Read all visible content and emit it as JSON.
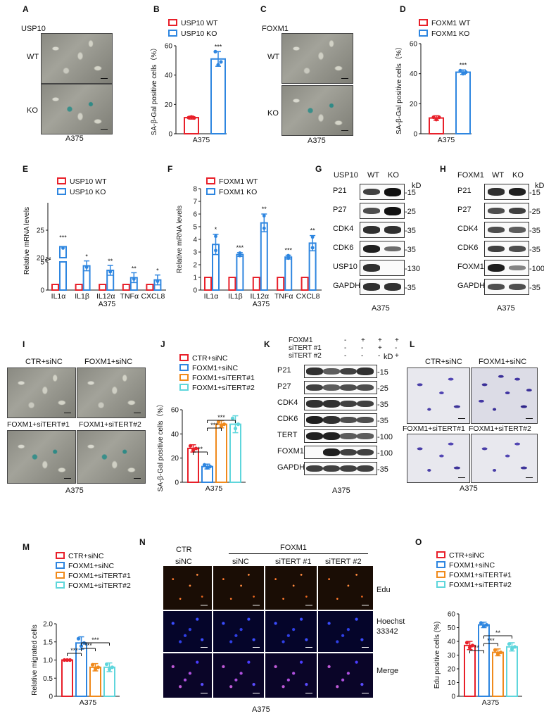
{
  "panels": {
    "A": {
      "letter": "A",
      "gene": "USP10",
      "rows": [
        "WT",
        "KO"
      ],
      "cell_line": "A375"
    },
    "B": {
      "letter": "B"
    },
    "C": {
      "letter": "C",
      "gene": "FOXM1",
      "rows": [
        "WT",
        "KO"
      ],
      "cell_line": "A375"
    },
    "D": {
      "letter": "D"
    },
    "E": {
      "letter": "E"
    },
    "F": {
      "letter": "F"
    },
    "G": {
      "letter": "G",
      "header_gene": "USP10",
      "cols": [
        "WT",
        "KO"
      ],
      "kd": "kD",
      "proteins": [
        "P21",
        "P27",
        "CDK4",
        "CDK6",
        "USP10",
        "GAPDH"
      ],
      "markers": [
        "15",
        "25",
        "35",
        "35",
        "130",
        "35"
      ],
      "cell_line": "A375"
    },
    "H": {
      "letter": "H",
      "header_gene": "FOXM1",
      "cols": [
        "WT",
        "KO"
      ],
      "kd": "kD",
      "proteins": [
        "P21",
        "P27",
        "CDK4",
        "CDK6",
        "FOXM1",
        "GAPDH"
      ],
      "markers": [
        "15",
        "25",
        "35",
        "35",
        "100",
        "35"
      ],
      "cell_line": "A375"
    },
    "I": {
      "letter": "I",
      "labels": [
        "CTR+siNC",
        "FOXM1+siNC",
        "FOXM1+siTERT#1",
        "FOXM1+siTERT#2"
      ],
      "cell_line": "A375"
    },
    "J": {
      "letter": "J"
    },
    "K": {
      "letter": "K",
      "row_headers": [
        "FOXM1",
        "siTERT #1",
        "siTERT #2"
      ],
      "signs": [
        [
          "-",
          "+",
          "+",
          "+"
        ],
        [
          "-",
          "-",
          "+",
          "-"
        ],
        [
          "-",
          "-",
          "-",
          "+"
        ]
      ],
      "kd": "kD",
      "proteins": [
        "P21",
        "P27",
        "CDK4",
        "CDK6",
        "TERT",
        "FOXM1",
        "GAPDH"
      ],
      "markers": [
        "15",
        "25",
        "35",
        "35",
        "100",
        "100",
        "35"
      ],
      "cell_line": "A375"
    },
    "L": {
      "letter": "L",
      "labels": [
        "CTR+siNC",
        "FOXM1+siNC",
        "FOXM1+siTERT#1",
        "FOXM1+siTERT#2"
      ],
      "cell_line": "A375"
    },
    "M": {
      "letter": "M"
    },
    "N": {
      "letter": "N",
      "col_top": [
        "CTR",
        "FOXM1"
      ],
      "col_sub": [
        "siNC",
        "siNC",
        "siTERT #1",
        "siTERT #2"
      ],
      "rows": [
        "Edu",
        "Hoechst",
        "33342",
        "Merge"
      ],
      "cell_line": "A375"
    },
    "O": {
      "letter": "O"
    }
  },
  "colors": {
    "red": "#e8202a",
    "blue": "#2e86e0",
    "orange": "#f08a1c",
    "cyan": "#5fd6dc"
  },
  "chart_data": [
    {
      "id": "B",
      "type": "bar",
      "title": "",
      "ylabel": "SA-β-Gal positive cells（%）",
      "xlabel": "A375",
      "ylim": [
        0,
        60
      ],
      "yticks": [
        0,
        20,
        40,
        60
      ],
      "legend": [
        "USP10 WT",
        "USP10 KO"
      ],
      "legend_position": "top",
      "series": [
        {
          "name": "USP10 WT",
          "value": 11,
          "sd": 1,
          "points": [
            11,
            11.5,
            10.8
          ],
          "color": "#e8202a"
        },
        {
          "name": "USP10 KO",
          "value": 51,
          "sd": 5,
          "points": [
            56,
            47,
            49
          ],
          "color": "#2e86e0"
        }
      ],
      "annotations": [
        "***"
      ]
    },
    {
      "id": "D",
      "type": "bar",
      "title": "",
      "ylabel": "SA-β-Gal positive cells（%）",
      "xlabel": "A375",
      "ylim": [
        0,
        60
      ],
      "yticks": [
        0,
        20,
        40,
        60
      ],
      "legend": [
        "FOXM1 WT",
        "FOXM1 KO"
      ],
      "legend_position": "top",
      "series": [
        {
          "name": "FOXM1 WT",
          "value": 10.5,
          "sd": 1.5,
          "points": [
            11,
            9.5,
            11
          ],
          "color": "#e8202a"
        },
        {
          "name": "FOXM1 KO",
          "value": 41,
          "sd": 1.5,
          "points": [
            42,
            40,
            41
          ],
          "color": "#2e86e0"
        }
      ],
      "annotations": [
        "***"
      ]
    },
    {
      "id": "E",
      "type": "bar",
      "title": "",
      "ylabel": "Relative mRNA levels",
      "xlabel": "A375",
      "broken_axis": true,
      "yticks_lower": [
        0,
        1,
        2,
        3,
        4,
        5
      ],
      "yticks_upper": [
        20,
        25,
        30
      ],
      "categories": [
        "IL1α",
        "IL1β",
        "IL12α",
        "TNFα",
        "CXCL8"
      ],
      "legend": [
        "USP10 WT",
        "USP10 KO"
      ],
      "series": [
        {
          "name": "USP10 WT",
          "values": [
            1,
            1,
            1,
            1,
            1
          ],
          "color": "#e8202a"
        },
        {
          "name": "USP10 KO",
          "values": [
            22,
            4.3,
            3.5,
            2.2,
            1.8
          ],
          "color": "#2e86e0"
        }
      ],
      "annotations": [
        "***",
        "*",
        "**",
        "**",
        "*"
      ]
    },
    {
      "id": "F",
      "type": "bar",
      "title": "",
      "ylabel": "Relative mRNA levels",
      "xlabel": "A375",
      "ylim": [
        0,
        8
      ],
      "yticks": [
        0,
        1,
        2,
        3,
        4,
        5,
        6,
        7,
        8
      ],
      "categories": [
        "IL1α",
        "IL1β",
        "IL12α",
        "TNFα",
        "CXCL8"
      ],
      "legend": [
        "FOXM1 WT",
        "FOXM1 KO"
      ],
      "series": [
        {
          "name": "FOXM1 WT",
          "values": [
            1,
            1,
            1,
            1,
            1
          ],
          "color": "#e8202a"
        },
        {
          "name": "FOXM1 KO",
          "values": [
            3.6,
            2.8,
            5.3,
            2.6,
            3.7
          ],
          "sd": [
            0.8,
            0.15,
            0.7,
            0.15,
            0.6
          ],
          "color": "#2e86e0"
        }
      ],
      "annotations": [
        "*",
        "***",
        "**",
        "***",
        "**"
      ]
    },
    {
      "id": "J",
      "type": "bar",
      "title": "",
      "ylabel": "SA-β-Gal positive cells（%）",
      "xlabel": "A375",
      "ylim": [
        0,
        60
      ],
      "yticks": [
        0,
        20,
        40,
        60
      ],
      "legend": [
        "CTR+siNC",
        "FOXM1+siNC",
        "FOXM1+siTERT#1",
        "FOXM1+siTERT#2"
      ],
      "series": [
        {
          "name": "CTR+siNC",
          "value": 28,
          "sd": 3,
          "color": "#e8202a"
        },
        {
          "name": "FOXM1+siNC",
          "value": 13,
          "sd": 2,
          "color": "#2e86e0"
        },
        {
          "name": "FOXM1+siTERT#1",
          "value": 48,
          "sd": 3,
          "color": "#f08a1c"
        },
        {
          "name": "FOXM1+siTERT#2",
          "value": 48,
          "sd": 7,
          "color": "#5fd6dc"
        }
      ],
      "annotations": [
        "**",
        "***",
        "***"
      ]
    },
    {
      "id": "M",
      "type": "bar",
      "title": "",
      "ylabel": "Relative migrated cells",
      "xlabel": "A375",
      "ylim": [
        0,
        2.0
      ],
      "yticks": [
        0,
        0.5,
        1.0,
        1.5,
        2.0
      ],
      "legend": [
        "CTR+siNC",
        "FOXM1+siNC",
        "FOXM1+siTERT#1",
        "FOXM1+siTERT#2"
      ],
      "series": [
        {
          "name": "CTR+siNC",
          "value": 1.0,
          "sd": 0,
          "color": "#e8202a"
        },
        {
          "name": "FOXM1+siNC",
          "value": 1.47,
          "sd": 0.17,
          "color": "#2e86e0"
        },
        {
          "name": "FOXM1+siTERT#1",
          "value": 0.8,
          "sd": 0.1,
          "color": "#f08a1c"
        },
        {
          "name": "FOXM1+siTERT#2",
          "value": 0.8,
          "sd": 0.12,
          "color": "#5fd6dc"
        }
      ],
      "annotations": [
        "***",
        "***",
        "***"
      ]
    },
    {
      "id": "O",
      "type": "bar",
      "title": "",
      "ylabel": "Edu positive cells (%)",
      "xlabel": "A375",
      "ylim": [
        0,
        60
      ],
      "yticks": [
        0,
        10,
        20,
        30,
        40,
        50,
        60
      ],
      "legend": [
        "CTR+siNC",
        "FOXM1+siNC",
        "FOXM1+siTERT#1",
        "FOXM1+siTERT#2"
      ],
      "series": [
        {
          "name": "CTR+siNC",
          "value": 37,
          "sd": 3,
          "color": "#e8202a"
        },
        {
          "name": "FOXM1+siNC",
          "value": 52,
          "sd": 2,
          "color": "#2e86e0"
        },
        {
          "name": "FOXM1+siTERT#1",
          "value": 32,
          "sd": 2.5,
          "color": "#f08a1c"
        },
        {
          "name": "FOXM1+siTERT#2",
          "value": 36,
          "sd": 3,
          "color": "#5fd6dc"
        }
      ],
      "annotations": [
        "**",
        "***",
        "**"
      ]
    }
  ]
}
